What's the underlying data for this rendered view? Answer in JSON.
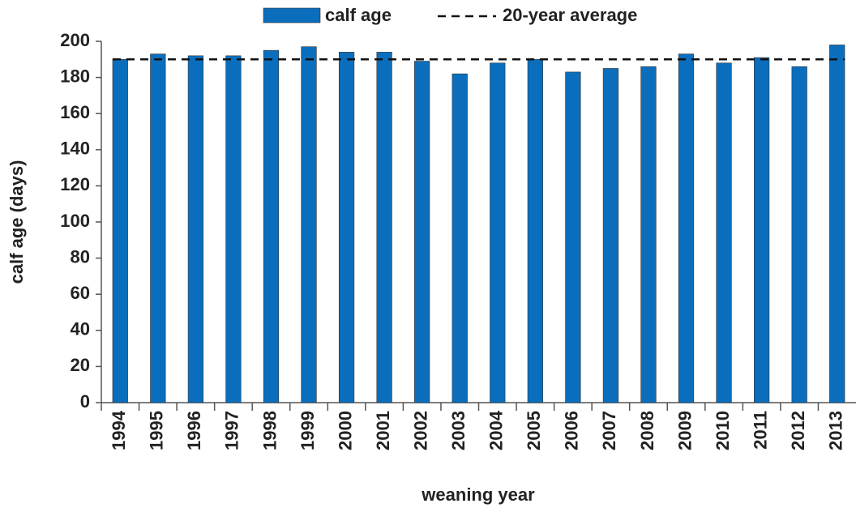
{
  "chart_data": {
    "type": "bar",
    "x_label": "weaning year",
    "y_label": "calf age (days)",
    "categories": [
      "1994",
      "1995",
      "1996",
      "1997",
      "1998",
      "1999",
      "2000",
      "2001",
      "2002",
      "2003",
      "2004",
      "2005",
      "2006",
      "2007",
      "2008",
      "2009",
      "2010",
      "2011",
      "2012",
      "2013"
    ],
    "series": [
      {
        "name": "calf age",
        "color": "#0a6ebd",
        "values": [
          190,
          193,
          192,
          192,
          195,
          197,
          194,
          194,
          189,
          182,
          188,
          190,
          183,
          185,
          186,
          193,
          188,
          191,
          186,
          198
        ]
      }
    ],
    "average": {
      "name": "20-year average",
      "value": 190,
      "color": "#111111"
    },
    "ylim": [
      0,
      200
    ],
    "yticks": [
      0,
      20,
      40,
      60,
      80,
      100,
      120,
      140,
      160,
      180,
      200
    ],
    "grid": false
  }
}
